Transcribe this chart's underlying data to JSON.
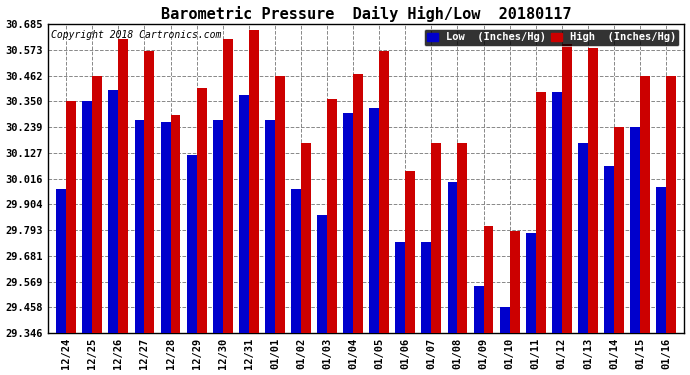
{
  "title": "Barometric Pressure  Daily High/Low  20180117",
  "copyright": "Copyright 2018 Cartronics.com",
  "legend_low": "Low  (Inches/Hg)",
  "legend_high": "High  (Inches/Hg)",
  "dates": [
    "12/24",
    "12/25",
    "12/26",
    "12/27",
    "12/28",
    "12/29",
    "12/30",
    "12/31",
    "01/01",
    "01/02",
    "01/03",
    "01/04",
    "01/05",
    "01/06",
    "01/07",
    "01/08",
    "01/09",
    "01/10",
    "01/11",
    "01/12",
    "01/13",
    "01/14",
    "01/15",
    "01/16"
  ],
  "low_values": [
    29.97,
    30.35,
    30.4,
    30.27,
    30.26,
    30.12,
    30.27,
    30.38,
    30.27,
    29.97,
    29.86,
    30.3,
    30.32,
    29.74,
    29.74,
    30.0,
    29.55,
    29.46,
    29.78,
    30.39,
    30.17,
    30.07,
    30.24,
    29.98
  ],
  "high_values": [
    30.35,
    30.46,
    30.62,
    30.57,
    30.29,
    30.41,
    30.62,
    30.66,
    30.46,
    30.17,
    30.36,
    30.47,
    30.57,
    30.05,
    30.17,
    30.17,
    29.81,
    29.79,
    30.39,
    30.6,
    30.58,
    30.24,
    30.46,
    30.46
  ],
  "ylim_min": 29.346,
  "ylim_max": 30.685,
  "yticks": [
    29.346,
    29.458,
    29.569,
    29.681,
    29.793,
    29.904,
    30.016,
    30.127,
    30.239,
    30.35,
    30.462,
    30.573,
    30.685
  ],
  "low_color": "#0000cc",
  "high_color": "#cc0000",
  "bg_color": "#ffffff",
  "plot_bg_color": "#ffffff",
  "grid_color": "#888888",
  "title_fontsize": 11,
  "copyright_fontsize": 7,
  "tick_fontsize": 7.5,
  "legend_fontsize": 7.5,
  "bar_width": 0.38
}
